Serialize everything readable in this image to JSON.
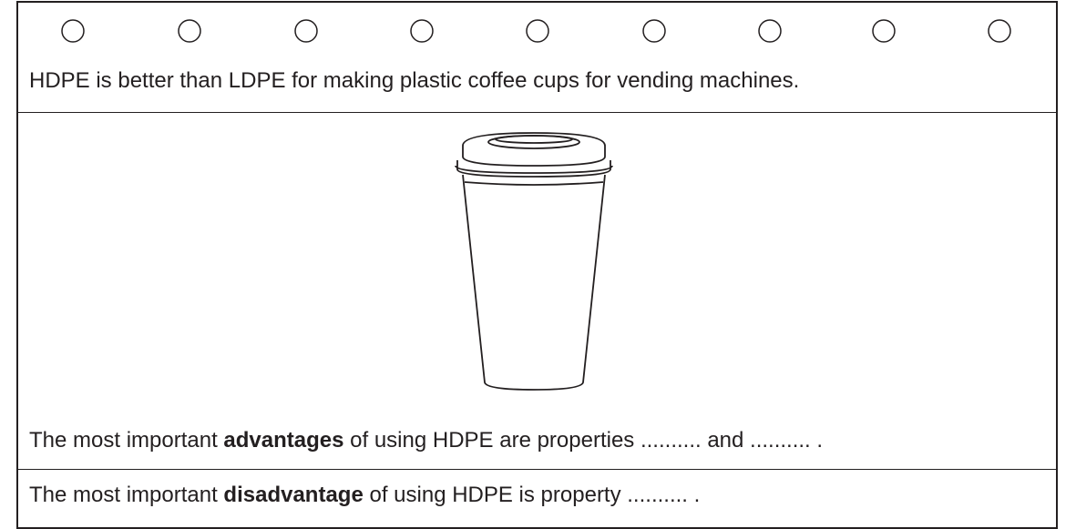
{
  "intro": "HDPE is better than LDPE for making plastic coffee cups for vending machines.",
  "sentence_1": {
    "before": "The most important ",
    "bold": "advantages",
    "after": " of using HDPE are properties .......... and .......... ."
  },
  "sentence_2": {
    "before": "The most important ",
    "bold": "disadvantage",
    "after": " of using HDPE is property .......... ."
  }
}
